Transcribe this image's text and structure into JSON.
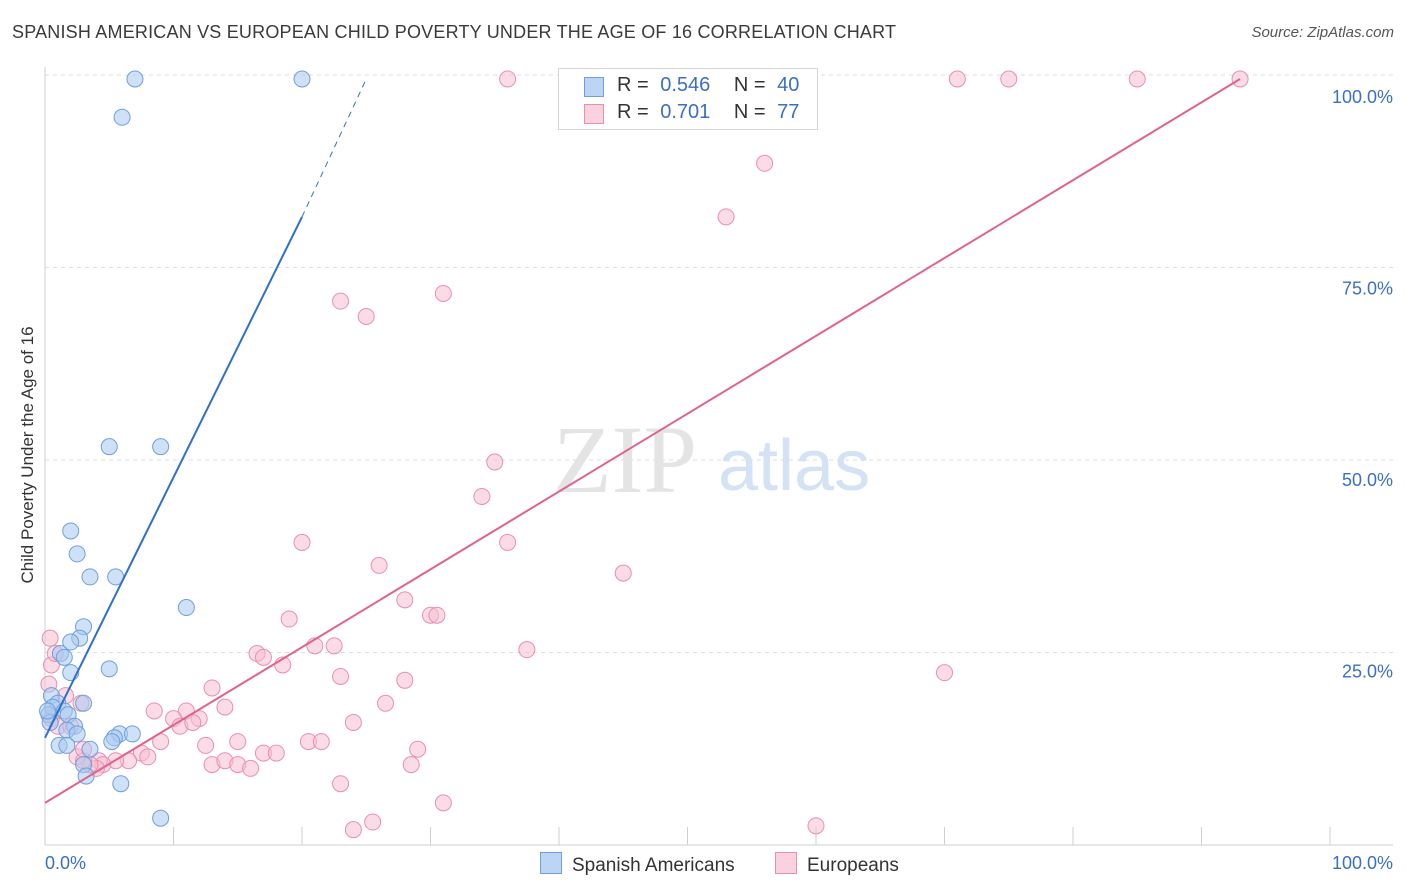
{
  "title": "SPANISH AMERICAN VS EUROPEAN CHILD POVERTY UNDER THE AGE OF 16 CORRELATION CHART",
  "source": "Source: ZipAtlas.com",
  "watermark": {
    "zip": "ZIP",
    "atlas": "atlas"
  },
  "legend": {
    "rows": [
      {
        "r_label": "R =",
        "r_value": "0.546",
        "n_label": "N =",
        "n_value": "40"
      },
      {
        "r_label": "R =",
        "r_value": "0.701",
        "n_label": "N =",
        "n_value": "77"
      }
    ]
  },
  "colors": {
    "blue_fill": "#a8c8f0",
    "blue_stroke": "#6f9fdc",
    "blue_line": "#2f6fc8",
    "pink_fill": "#f7c0d2",
    "pink_stroke": "#e98fae",
    "pink_line": "#e0638d",
    "grid": "#dddddd",
    "tick_text": "#3b6fc4"
  },
  "chart_data": {
    "type": "scatter",
    "title": "SPANISH AMERICAN VS EUROPEAN CHILD POVERTY UNDER THE AGE OF 16 CORRELATION CHART",
    "xlabel": "",
    "ylabel": "Child Poverty Under the Age of 16",
    "xlim": [
      0,
      100
    ],
    "ylim": [
      0,
      100
    ],
    "x_tick_labels": [
      "0.0%",
      "100.0%"
    ],
    "y_tick_labels": [
      "25.0%",
      "50.0%",
      "75.0%",
      "100.0%"
    ],
    "y_ticks": [
      25,
      50,
      75,
      100
    ],
    "grid": true,
    "legend_position": "bottom",
    "series": [
      {
        "name": "Spanish Americans",
        "r": 0.546,
        "n": 40,
        "trend": {
          "x0": 0,
          "y0": 14,
          "x1": 20,
          "y1": 82,
          "dash_x1": 25,
          "dash_y1": 100
        },
        "points": [
          [
            7,
            100
          ],
          [
            20,
            100
          ],
          [
            6,
            95
          ],
          [
            5,
            52
          ],
          [
            9,
            52
          ],
          [
            2,
            41
          ],
          [
            2.5,
            38
          ],
          [
            3.5,
            35
          ],
          [
            5.5,
            35
          ],
          [
            11,
            31
          ],
          [
            3,
            28.5
          ],
          [
            2.7,
            27
          ],
          [
            2,
            26.5
          ],
          [
            1.2,
            25
          ],
          [
            1.5,
            24.5
          ],
          [
            5,
            23
          ],
          [
            2,
            22.5
          ],
          [
            0.5,
            19.5
          ],
          [
            1,
            18.5
          ],
          [
            3,
            18.5
          ],
          [
            0.6,
            18
          ],
          [
            1.5,
            17.5
          ],
          [
            1.8,
            17
          ],
          [
            0.3,
            17
          ],
          [
            0.4,
            16
          ],
          [
            2.3,
            15.5
          ],
          [
            1.7,
            15
          ],
          [
            2.5,
            14.5
          ],
          [
            5.8,
            14.5
          ],
          [
            6.8,
            14.5
          ],
          [
            5.4,
            14
          ],
          [
            5.2,
            13.5
          ],
          [
            1.1,
            13
          ],
          [
            1.7,
            13
          ],
          [
            3.5,
            12.5
          ],
          [
            3,
            10.5
          ],
          [
            3.2,
            9
          ],
          [
            5.9,
            8
          ],
          [
            9,
            3.5
          ],
          [
            0.2,
            17.5
          ]
        ]
      },
      {
        "name": "Europeans",
        "r": 0.701,
        "n": 77,
        "trend": {
          "x0": 0,
          "y0": 5.5,
          "x1": 93,
          "y1": 100
        },
        "points": [
          [
            36,
            100
          ],
          [
            71,
            100
          ],
          [
            75,
            100
          ],
          [
            85,
            100
          ],
          [
            93,
            100
          ],
          [
            56,
            89
          ],
          [
            53,
            82
          ],
          [
            23,
            71
          ],
          [
            25,
            69
          ],
          [
            31,
            72
          ],
          [
            35,
            50
          ],
          [
            34,
            45.5
          ],
          [
            36,
            39.5
          ],
          [
            20,
            39.5
          ],
          [
            26,
            36.5
          ],
          [
            45,
            35.5
          ],
          [
            28,
            32
          ],
          [
            30,
            30
          ],
          [
            30.5,
            30
          ],
          [
            19,
            29.5
          ],
          [
            37.5,
            25.5
          ],
          [
            22.5,
            26
          ],
          [
            21,
            26
          ],
          [
            16.5,
            25
          ],
          [
            17,
            24.5
          ],
          [
            18.5,
            23.5
          ],
          [
            23,
            22
          ],
          [
            70,
            22.5
          ],
          [
            28,
            21.5
          ],
          [
            13,
            20.5
          ],
          [
            14,
            18
          ],
          [
            26.5,
            18.5
          ],
          [
            8.5,
            17.5
          ],
          [
            11,
            17.5
          ],
          [
            10,
            16.5
          ],
          [
            12,
            16.5
          ],
          [
            10.5,
            15.5
          ],
          [
            11.5,
            16
          ],
          [
            24,
            16
          ],
          [
            0.5,
            16.5
          ],
          [
            1,
            15.5
          ],
          [
            2,
            15.5
          ],
          [
            0.3,
            21
          ],
          [
            0.5,
            23.5
          ],
          [
            0.8,
            25
          ],
          [
            0.4,
            27
          ],
          [
            1.6,
            19.5
          ],
          [
            2.8,
            18.5
          ],
          [
            15,
            13.5
          ],
          [
            20.5,
            13.5
          ],
          [
            21.5,
            13.5
          ],
          [
            29,
            12.5
          ],
          [
            12.5,
            13
          ],
          [
            9,
            13.5
          ],
          [
            7.5,
            12
          ],
          [
            8,
            11.5
          ],
          [
            6.5,
            11
          ],
          [
            5.5,
            11
          ],
          [
            4.2,
            11
          ],
          [
            4.5,
            10.5
          ],
          [
            4,
            10
          ],
          [
            3.5,
            10.5
          ],
          [
            2.5,
            11.5
          ],
          [
            3,
            11
          ],
          [
            13,
            10.5
          ],
          [
            14,
            11
          ],
          [
            15,
            10.5
          ],
          [
            17,
            12
          ],
          [
            18,
            12
          ],
          [
            28.5,
            10.5
          ],
          [
            23,
            8
          ],
          [
            16,
            10
          ],
          [
            31,
            5.5
          ],
          [
            24,
            2
          ],
          [
            25.5,
            3
          ],
          [
            60,
            2.5
          ],
          [
            3,
            12.5
          ]
        ]
      }
    ]
  },
  "bottom_legend": {
    "items": [
      "Spanish Americans",
      "Europeans"
    ]
  }
}
